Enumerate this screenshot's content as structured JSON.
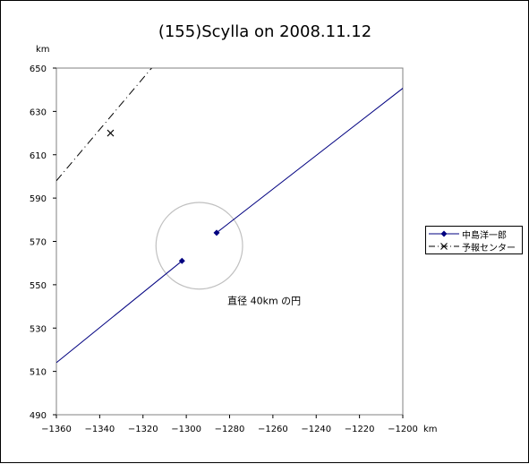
{
  "chart_data": {
    "type": "line",
    "title": "(155)Scylla on 2008.11.12",
    "xlabel": "km",
    "ylabel": "km",
    "xlim": [
      -1360,
      -1200
    ],
    "ylim": [
      490,
      650
    ],
    "xticks": [
      -1360,
      -1340,
      -1320,
      -1300,
      -1280,
      -1260,
      -1240,
      -1220,
      -1200
    ],
    "yticks": [
      490,
      510,
      530,
      550,
      570,
      590,
      610,
      630,
      650
    ],
    "grid": false,
    "legend_position": "right",
    "series": [
      {
        "name": "中島洋一郎",
        "color": "#000080",
        "line_style": "solid",
        "marker": "diamond",
        "segments": [
          [
            [
              -1360,
              514
            ],
            [
              -1302,
              561
            ]
          ],
          [
            [
              -1286,
              574
            ],
            [
              -1197,
              643
            ]
          ]
        ],
        "markers": [
          [
            -1302,
            561
          ],
          [
            -1286,
            574
          ]
        ]
      },
      {
        "name": "予報センター",
        "color": "#000000",
        "line_style": "dash-dot",
        "marker": "x",
        "segments": [
          [
            [
              -1360,
              598
            ],
            [
              -1316,
              650
            ]
          ]
        ],
        "markers": [
          [
            -1335,
            620
          ]
        ]
      }
    ],
    "circle": {
      "center": [
        -1294,
        568
      ],
      "radius": 20,
      "color": "#c0c0c0"
    },
    "annotations": [
      {
        "text": "直径 40km の円",
        "x": -1281,
        "y": 541
      }
    ]
  }
}
